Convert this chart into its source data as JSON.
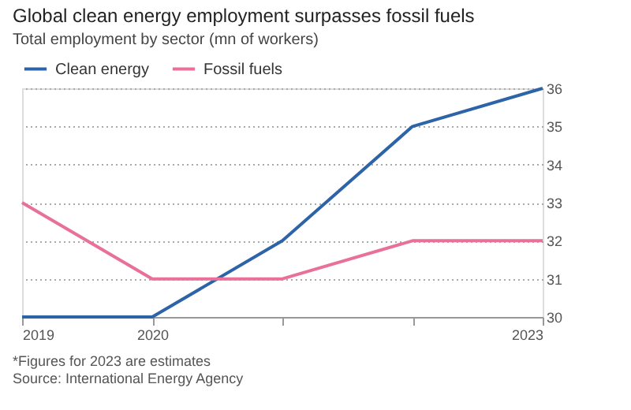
{
  "chart_data": {
    "type": "line",
    "title": "Global clean energy employment surpasses fossil fuels",
    "subtitle": "Total employment by sector (mn of workers)",
    "x": [
      2019,
      2020,
      2021,
      2022,
      2023
    ],
    "xlim": [
      2019,
      2023
    ],
    "xticks": [
      2019,
      2020,
      {
        "value": 2021,
        "label": null
      },
      {
        "value": 2022,
        "label": null
      },
      2023
    ],
    "ylim": [
      30,
      36
    ],
    "yticks": [
      30,
      31,
      32,
      33,
      34,
      35,
      36
    ],
    "series": [
      {
        "name": "Clean energy",
        "color": "#2d64a8",
        "values": [
          30,
          30,
          32,
          35,
          36
        ]
      },
      {
        "name": "Fossil fuels",
        "color": "#e8709b",
        "values": [
          33,
          31,
          31,
          32,
          32
        ]
      }
    ],
    "grid": "y",
    "legend": "top left",
    "marker": "none",
    "line_style": "solid",
    "annotations": [
      "*Figures for 2023 are estimates",
      "Source: International Energy Agency"
    ]
  }
}
